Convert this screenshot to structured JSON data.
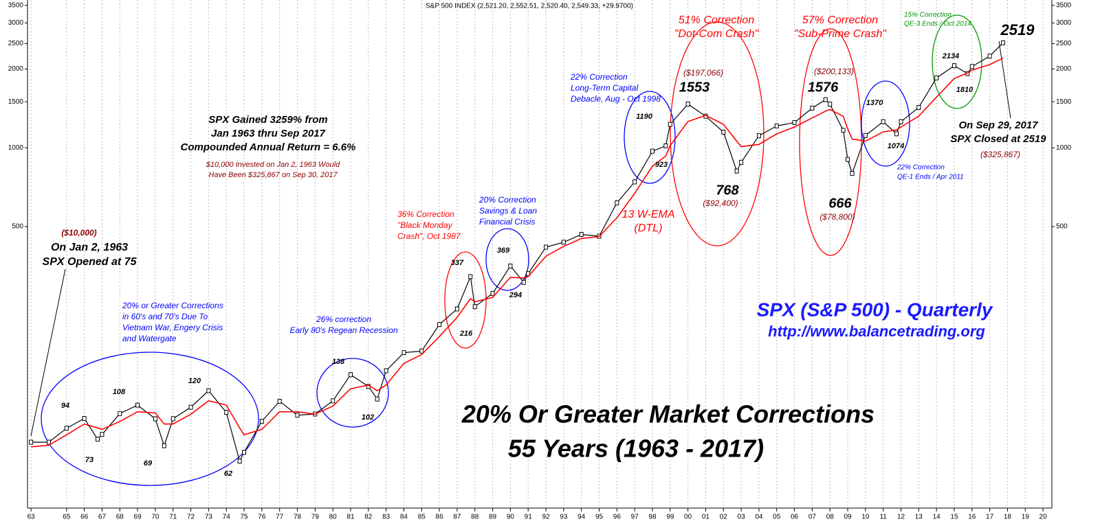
{
  "chart_data": {
    "type": "line",
    "title": "S&P 500 INDEX (2,521.20, 2,552.51, 2,520.40, 2,549.33, +29.9700)",
    "log_scale": true,
    "grid": true,
    "x": [
      1963.0,
      1964.0,
      1965.0,
      1966.0,
      1966.75,
      1967.0,
      1968.0,
      1969.0,
      1970.0,
      1970.5,
      1971.0,
      1972.0,
      1973.0,
      1974.0,
      1974.75,
      1975.0,
      1976.0,
      1977.0,
      1978.0,
      1979.0,
      1980.0,
      1981.0,
      1982.0,
      1982.5,
      1983.0,
      1984.0,
      1985.0,
      1986.0,
      1987.0,
      1987.75,
      1988.0,
      1989.0,
      1990.0,
      1990.75,
      1991.0,
      1992.0,
      1993.0,
      1994.0,
      1995.0,
      1996.0,
      1997.0,
      1998.0,
      1998.75,
      1999.0,
      2000.0,
      2001.0,
      2002.0,
      2002.75,
      2003.0,
      2004.0,
      2005.0,
      2006.0,
      2007.0,
      2007.75,
      2008.0,
      2008.75,
      2009.0,
      2009.25,
      2010.0,
      2011.0,
      2011.75,
      2012.0,
      2013.0,
      2014.0,
      2015.0,
      2015.75,
      2016.0,
      2017.0,
      2017.75
    ],
    "series": [
      {
        "color": "#000000",
        "values": [
          75,
          75,
          84.8,
          92.4,
          77,
          80.3,
          96.5,
          103.9,
          92.1,
          72.7,
          92.2,
          102,
          118,
          97.5,
          63.5,
          68.6,
          90.2,
          107.5,
          95.1,
          96.1,
          107.9,
          135.8,
          122.5,
          109.6,
          140.6,
          164.9,
          167.2,
          211.3,
          242.2,
          321.8,
          247.1,
          277.7,
          353.4,
          306,
          330.2,
          417.1,
          435.7,
          466.5,
          459.3,
          615.9,
          740.7,
          970.4,
          1017,
          1229,
          1469,
          1320,
          1148,
          815,
          880,
          1112,
          1212,
          1248,
          1418,
          1527,
          1468,
          1166,
          903,
          798,
          1115,
          1258,
          1131,
          1258,
          1426,
          1848,
          2059,
          1920,
          2044,
          2239,
          2519
        ]
      },
      {
        "color": "#ff0000",
        "values": [
          72,
          73,
          80,
          88,
          85,
          84,
          90,
          98,
          97,
          88,
          88,
          96,
          108,
          104,
          85,
          80,
          84,
          98,
          98,
          96,
          103,
          120,
          124,
          118,
          124,
          150,
          162,
          190,
          225,
          265,
          258,
          268,
          320,
          318,
          322,
          385,
          420,
          450,
          458,
          540,
          670,
          850,
          930,
          1020,
          1260,
          1330,
          1230,
          1060,
          1010,
          1030,
          1130,
          1200,
          1300,
          1380,
          1400,
          1320,
          1180,
          1080,
          1060,
          1150,
          1170,
          1200,
          1320,
          1560,
          1840,
          1930,
          1980,
          2080,
          2200
        ]
      }
    ],
    "xlim": [
      1962.8,
      2020.5
    ],
    "ylim": [
      42,
      3670
    ],
    "yticks": [
      500,
      1000,
      1500,
      2000,
      2500,
      3000,
      3500
    ],
    "xticks": [
      {
        "value": 1963,
        "label": "63"
      },
      {
        "value": 1965,
        "label": "65"
      },
      {
        "value": 1966,
        "label": "66"
      },
      {
        "value": 1967,
        "label": "67"
      },
      {
        "value": 1968,
        "label": "68"
      },
      {
        "value": 1969,
        "label": "69"
      },
      {
        "value": 1970,
        "label": "70"
      },
      {
        "value": 1971,
        "label": "71"
      },
      {
        "value": 1972,
        "label": "72"
      },
      {
        "value": 1973,
        "label": "73"
      },
      {
        "value": 1974,
        "label": "74"
      },
      {
        "value": 1975,
        "label": "75"
      },
      {
        "value": 1976,
        "label": "76"
      },
      {
        "value": 1977,
        "label": "77"
      },
      {
        "value": 1978,
        "label": "78"
      },
      {
        "value": 1979,
        "label": "79"
      },
      {
        "value": 1980,
        "label": "80"
      },
      {
        "value": 1981,
        "label": "81"
      },
      {
        "value": 1982,
        "label": "82"
      },
      {
        "value": 1983,
        "label": "83"
      },
      {
        "value": 1984,
        "label": "84"
      },
      {
        "value": 1985,
        "label": "85"
      },
      {
        "value": 1986,
        "label": "86"
      },
      {
        "value": 1987,
        "label": "87"
      },
      {
        "value": 1988,
        "label": "88"
      },
      {
        "value": 1989,
        "label": "89"
      },
      {
        "value": 1990,
        "label": "90"
      },
      {
        "value": 1991,
        "label": "91"
      },
      {
        "value": 1992,
        "label": "92"
      },
      {
        "value": 1993,
        "label": "93"
      },
      {
        "value": 1994,
        "label": "94"
      },
      {
        "value": 1995,
        "label": "95"
      },
      {
        "value": 1996,
        "label": "96"
      },
      {
        "value": 1997,
        "label": "97"
      },
      {
        "value": 1998,
        "label": "98"
      },
      {
        "value": 1999,
        "label": "99"
      },
      {
        "value": 2000,
        "label": "00"
      },
      {
        "value": 2001,
        "label": "01"
      },
      {
        "value": 2002,
        "label": "02"
      },
      {
        "value": 2003,
        "label": "03"
      },
      {
        "value": 2004,
        "label": "04"
      },
      {
        "value": 2005,
        "label": "05"
      },
      {
        "value": 2006,
        "label": "06"
      },
      {
        "value": 2007,
        "label": "07"
      },
      {
        "value": 2008,
        "label": "08"
      },
      {
        "value": 2009,
        "label": "09"
      },
      {
        "value": 2010,
        "label": "10"
      },
      {
        "value": 2011,
        "label": "11"
      },
      {
        "value": 2012,
        "label": "12"
      },
      {
        "value": 2013,
        "label": "13"
      },
      {
        "value": 2014,
        "label": "14"
      },
      {
        "value": 2015,
        "label": "15"
      },
      {
        "value": 2016,
        "label": "16"
      },
      {
        "value": 2017,
        "label": "17"
      },
      {
        "value": 2018,
        "label": "18"
      },
      {
        "value": 2019,
        "label": "19"
      },
      {
        "value": 2020,
        "label": "20"
      }
    ],
    "annotations": [
      {
        "lines": [
          "($10,000)"
        ],
        "color": "#8b0000"
      },
      {
        "lines": [
          "On Jan 2, 1963",
          "SPX Opened at 75"
        ],
        "color": "#000000"
      },
      {
        "lines": [
          "SPX Gained 3259% from",
          "Jan 1963 thru Sep 2017",
          "Compounded Annual Return = 6.6%"
        ],
        "color": "#000000"
      },
      {
        "lines": [
          "$10,000  Invested on Jan 2, 1963 Would",
          "Have Been $325,867 on Sep 30, 2017"
        ],
        "color": "#8b0000"
      },
      {
        "lines": [
          "20% or Greater Corrections",
          "in 60's and 70's Due To",
          "Vietnam War, Engery Crisis",
          "and Watergate"
        ],
        "color": "#0000ff"
      },
      {
        "lines": [
          "26% correction",
          "Early 80's Regean Recession"
        ],
        "color": "#0000ff"
      },
      {
        "lines": [
          "36% Correction",
          "\"Black Monday",
          "Crash\",  Oct 1987"
        ],
        "color": "#ff0000"
      },
      {
        "lines": [
          "20% Correction",
          "Savings & Loan",
          "Financial Crisis"
        ],
        "color": "#0000ff"
      },
      {
        "lines": [
          "22% Correction",
          "Long-Term Capital",
          "Debacle, Aug - Oct 1998"
        ],
        "color": "#0000ff"
      },
      {
        "lines": [
          "51% Correction",
          "\"Dot-Com Crash\""
        ],
        "color": "#ff0000"
      },
      {
        "lines": [
          "57% Correction",
          "\"Sub-Prime Crash\""
        ],
        "color": "#ff0000"
      },
      {
        "lines": [
          "15% Correction",
          "QE-3 Ends / Oct 2014"
        ],
        "color": "#009900"
      },
      {
        "lines": [
          "2519"
        ],
        "color": "#000000"
      },
      {
        "lines": [
          "On Sep 29, 2017",
          "SPX Closed at 2519"
        ],
        "color": "#000000"
      },
      {
        "lines": [
          "($325,867)"
        ],
        "color": "#8b0000"
      },
      {
        "lines": [
          "22% Correction",
          "QE-1 Ends / Apr 2011"
        ],
        "color": "#0000ff"
      },
      {
        "lines": [
          "13 W-EMA",
          "(DTL)"
        ],
        "color": "#ff0000"
      },
      {
        "lines": [
          "($197,066)"
        ],
        "color": "#8b0000"
      },
      {
        "lines": [
          "($200,133)"
        ],
        "color": "#8b0000"
      },
      {
        "lines": [
          "1553"
        ],
        "color": "#000000"
      },
      {
        "lines": [
          "1576"
        ],
        "color": "#000000"
      },
      {
        "lines": [
          "768"
        ],
        "color": "#000000"
      },
      {
        "lines": [
          "($92,400)"
        ],
        "color": "#8b0000"
      },
      {
        "lines": [
          "666"
        ],
        "color": "#000000"
      },
      {
        "lines": [
          "($78,800)"
        ],
        "color": "#8b0000"
      },
      {
        "lines": [
          "SPX (S&P 500) - Quarterly"
        ],
        "color": "#1a1aff"
      },
      {
        "lines": [
          "http://www.balancetrading.org"
        ],
        "color": "#1a1aff"
      },
      {
        "lines": [
          "20% Or Greater Market Corrections"
        ],
        "color": "#000000"
      },
      {
        "lines": [
          "55 Years (1963 - 2017)"
        ],
        "color": "#000000"
      },
      {
        "lines": [
          "94"
        ],
        "color": "#000000"
      },
      {
        "lines": [
          "73"
        ],
        "color": "#000000"
      },
      {
        "lines": [
          "108"
        ],
        "color": "#000000"
      },
      {
        "lines": [
          "69"
        ],
        "color": "#000000"
      },
      {
        "lines": [
          "120"
        ],
        "color": "#000000"
      },
      {
        "lines": [
          "62"
        ],
        "color": "#000000"
      },
      {
        "lines": [
          "138"
        ],
        "color": "#000000"
      },
      {
        "lines": [
          "102"
        ],
        "color": "#000000"
      },
      {
        "lines": [
          "337"
        ],
        "color": "#000000"
      },
      {
        "lines": [
          "216"
        ],
        "color": "#000000"
      },
      {
        "lines": [
          "369"
        ],
        "color": "#000000"
      },
      {
        "lines": [
          "294"
        ],
        "color": "#000000"
      },
      {
        "lines": [
          "1190"
        ],
        "color": "#000000"
      },
      {
        "lines": [
          "923"
        ],
        "color": "#000000"
      },
      {
        "lines": [
          "1370"
        ],
        "color": "#000000"
      },
      {
        "lines": [
          "1074"
        ],
        "color": "#000000"
      },
      {
        "lines": [
          "2134"
        ],
        "color": "#000000"
      },
      {
        "lines": [
          "1810"
        ],
        "color": "#000000"
      }
    ]
  }
}
